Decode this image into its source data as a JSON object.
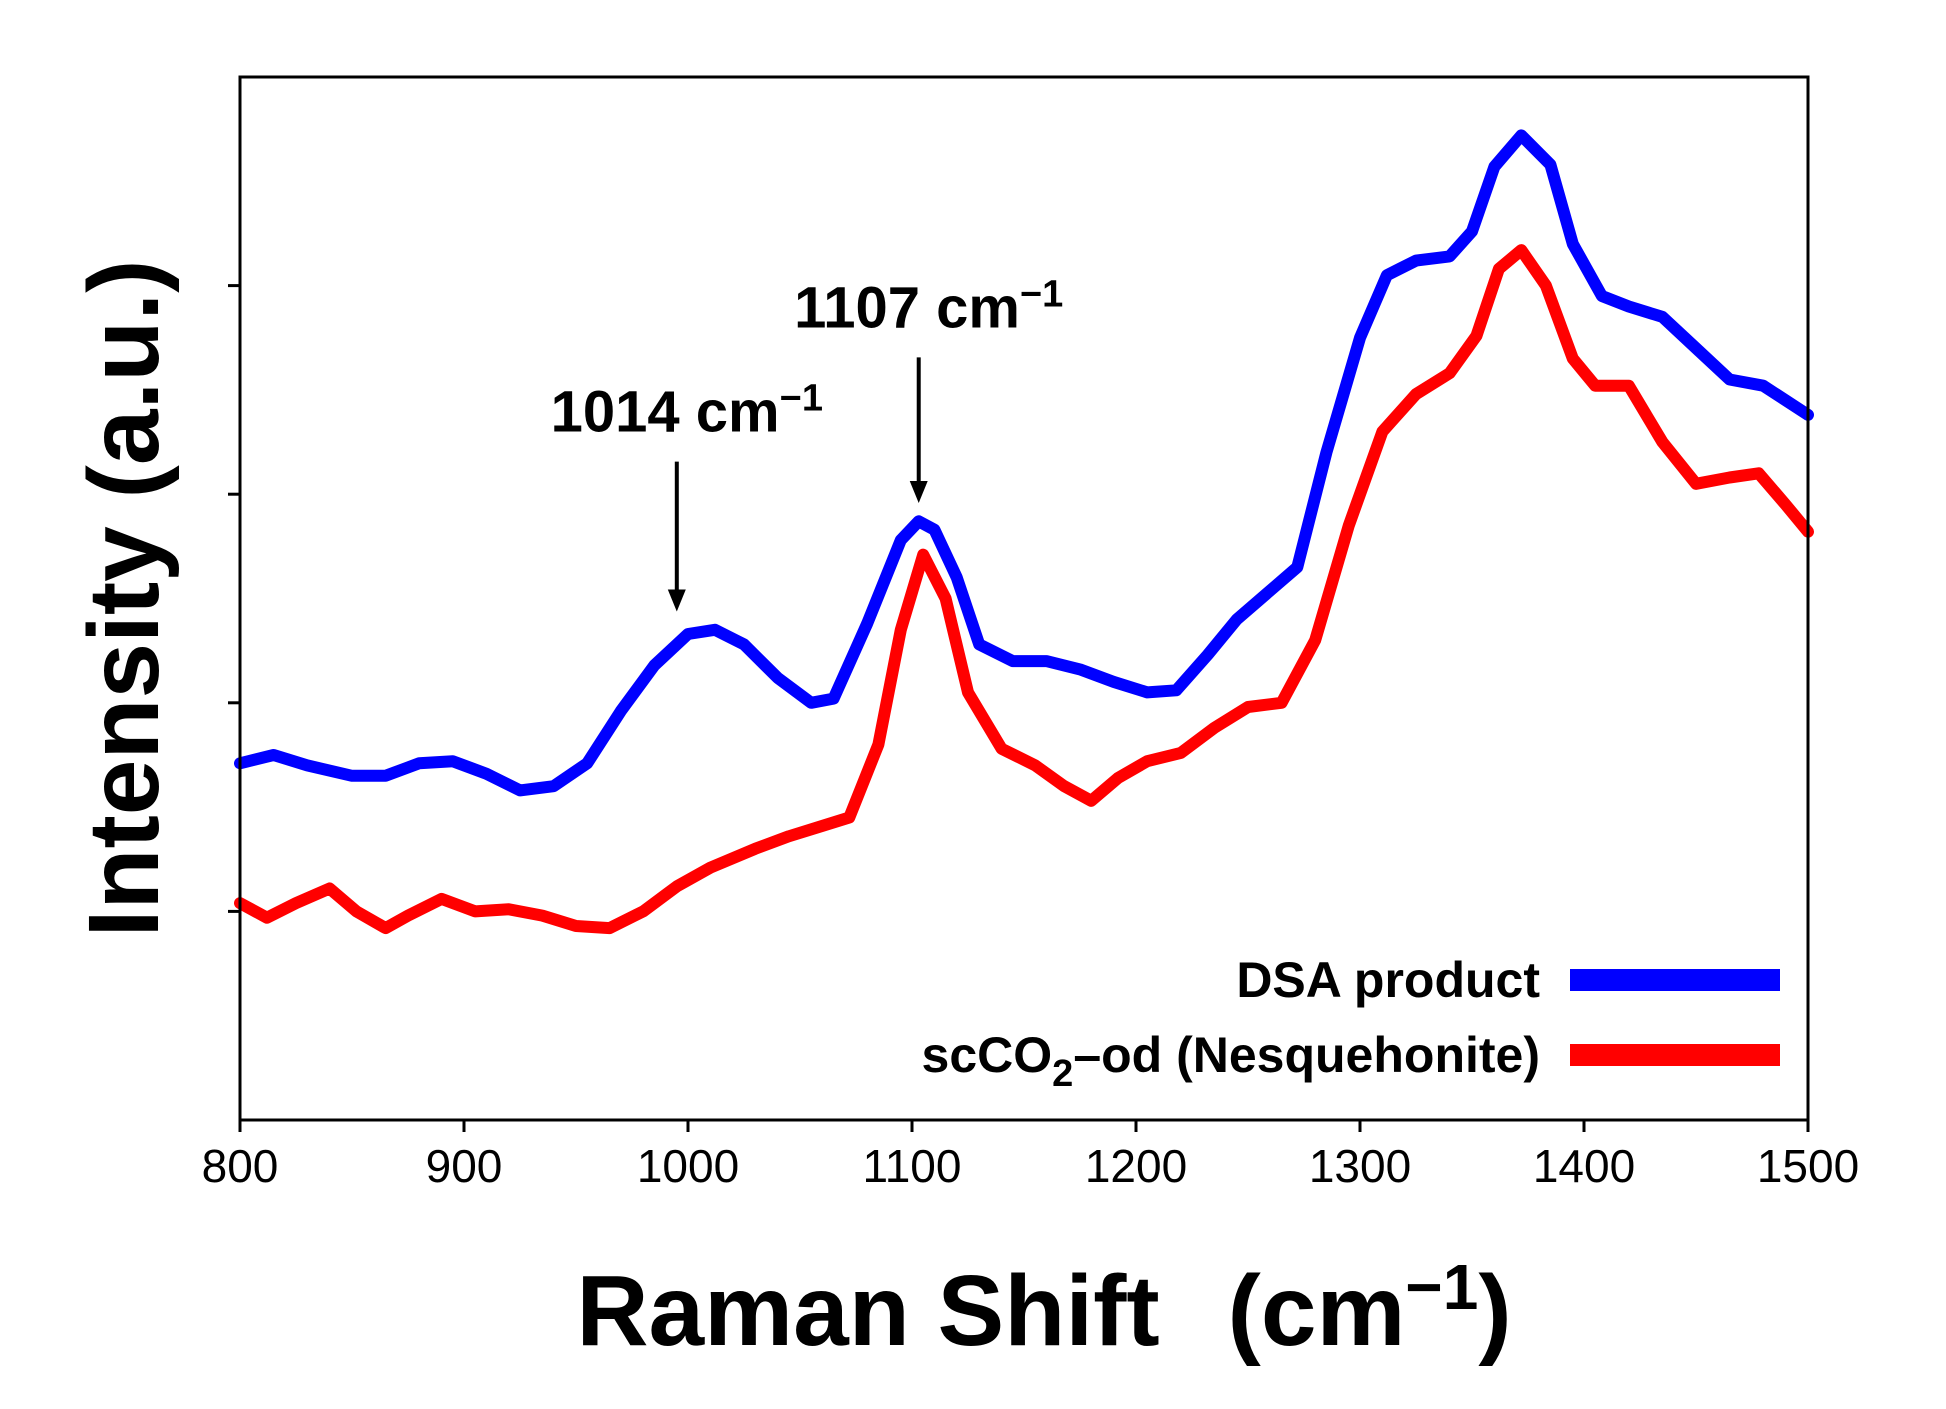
{
  "chart_data": {
    "type": "line",
    "title": "",
    "xlabel": "Raman Shift",
    "xlabel_unit": "(cm",
    "xlabel_unit_sup": "−1",
    "xlabel_unit_close": ")",
    "ylabel": "Intensity (a.u.)",
    "xlim": [
      800,
      1500
    ],
    "ylim": [
      0,
      5
    ],
    "x_ticks": [
      "800",
      "900",
      "1000",
      "1100",
      "1200",
      "1300",
      "1400",
      "1500"
    ],
    "y_ticks": [
      1,
      2,
      3,
      4
    ],
    "y_tick_labels_shown": false,
    "legend_position": "bottom-right",
    "series": [
      {
        "name": "DSA product",
        "color": "#0000ff",
        "points": [
          [
            800,
            1.71
          ],
          [
            815,
            1.75
          ],
          [
            830,
            1.7
          ],
          [
            850,
            1.65
          ],
          [
            865,
            1.65
          ],
          [
            880,
            1.71
          ],
          [
            895,
            1.72
          ],
          [
            910,
            1.66
          ],
          [
            925,
            1.58
          ],
          [
            940,
            1.6
          ],
          [
            955,
            1.71
          ],
          [
            970,
            1.96
          ],
          [
            985,
            2.18
          ],
          [
            1000,
            2.33
          ],
          [
            1012,
            2.35
          ],
          [
            1025,
            2.28
          ],
          [
            1040,
            2.12
          ],
          [
            1055,
            2.0
          ],
          [
            1065,
            2.02
          ],
          [
            1080,
            2.38
          ],
          [
            1095,
            2.78
          ],
          [
            1103,
            2.87
          ],
          [
            1110,
            2.83
          ],
          [
            1120,
            2.6
          ],
          [
            1130,
            2.28
          ],
          [
            1145,
            2.2
          ],
          [
            1160,
            2.2
          ],
          [
            1175,
            2.16
          ],
          [
            1190,
            2.1
          ],
          [
            1205,
            2.05
          ],
          [
            1218,
            2.06
          ],
          [
            1232,
            2.23
          ],
          [
            1245,
            2.4
          ],
          [
            1258,
            2.52
          ],
          [
            1272,
            2.65
          ],
          [
            1285,
            3.2
          ],
          [
            1300,
            3.75
          ],
          [
            1312,
            4.05
          ],
          [
            1325,
            4.12
          ],
          [
            1340,
            4.14
          ],
          [
            1350,
            4.26
          ],
          [
            1360,
            4.57
          ],
          [
            1372,
            4.72
          ],
          [
            1385,
            4.58
          ],
          [
            1395,
            4.2
          ],
          [
            1408,
            3.95
          ],
          [
            1420,
            3.9
          ],
          [
            1435,
            3.85
          ],
          [
            1450,
            3.7
          ],
          [
            1465,
            3.55
          ],
          [
            1480,
            3.52
          ],
          [
            1500,
            3.38
          ]
        ]
      },
      {
        "name": "scCO₂–od (Nesquehonite)",
        "label_parts": [
          "scCO",
          "2",
          "–od (Nesquehonite)"
        ],
        "color": "#ff0000",
        "points": [
          [
            800,
            1.04
          ],
          [
            812,
            0.97
          ],
          [
            825,
            1.04
          ],
          [
            840,
            1.11
          ],
          [
            852,
            1.0
          ],
          [
            865,
            0.92
          ],
          [
            875,
            0.98
          ],
          [
            890,
            1.06
          ],
          [
            905,
            1.0
          ],
          [
            920,
            1.01
          ],
          [
            935,
            0.98
          ],
          [
            950,
            0.93
          ],
          [
            965,
            0.92
          ],
          [
            980,
            1.0
          ],
          [
            995,
            1.12
          ],
          [
            1010,
            1.21
          ],
          [
            1030,
            1.3
          ],
          [
            1045,
            1.36
          ],
          [
            1060,
            1.41
          ],
          [
            1072,
            1.45
          ],
          [
            1085,
            1.8
          ],
          [
            1095,
            2.35
          ],
          [
            1105,
            2.71
          ],
          [
            1115,
            2.5
          ],
          [
            1125,
            2.05
          ],
          [
            1140,
            1.78
          ],
          [
            1155,
            1.7
          ],
          [
            1168,
            1.6
          ],
          [
            1180,
            1.53
          ],
          [
            1192,
            1.64
          ],
          [
            1205,
            1.72
          ],
          [
            1220,
            1.76
          ],
          [
            1235,
            1.88
          ],
          [
            1250,
            1.98
          ],
          [
            1265,
            2.0
          ],
          [
            1280,
            2.3
          ],
          [
            1295,
            2.85
          ],
          [
            1310,
            3.3
          ],
          [
            1325,
            3.48
          ],
          [
            1340,
            3.58
          ],
          [
            1352,
            3.76
          ],
          [
            1362,
            4.08
          ],
          [
            1372,
            4.17
          ],
          [
            1383,
            4.0
          ],
          [
            1395,
            3.65
          ],
          [
            1405,
            3.52
          ],
          [
            1420,
            3.52
          ],
          [
            1435,
            3.25
          ],
          [
            1450,
            3.05
          ],
          [
            1465,
            3.08
          ],
          [
            1478,
            3.1
          ],
          [
            1490,
            2.95
          ],
          [
            1500,
            2.82
          ]
        ]
      }
    ],
    "annotations": [
      {
        "text": "1014 cm",
        "sup": "−1",
        "x": 995,
        "y": 2.38,
        "label_y": 3.3
      },
      {
        "text": "1107 cm",
        "sup": "−1",
        "x": 1103,
        "y": 2.9,
        "label_y": 3.8
      }
    ]
  }
}
